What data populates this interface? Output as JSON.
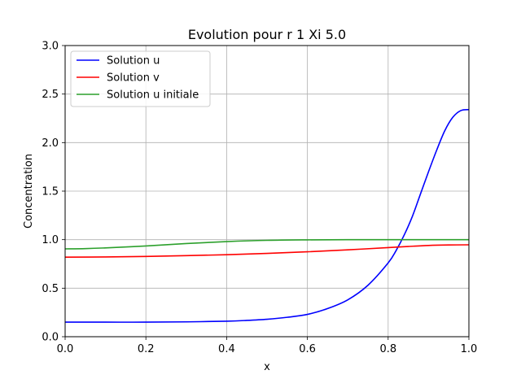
{
  "chart_data": {
    "type": "line",
    "title": "Evolution pour r 1 Xi 5.0",
    "xlabel": "x",
    "ylabel": "Concentration",
    "xlim": [
      0.0,
      1.0
    ],
    "ylim": [
      0.0,
      3.0
    ],
    "x_ticks": [
      "0.0",
      "0.2",
      "0.4",
      "0.6",
      "0.8",
      "1.0"
    ],
    "y_ticks": [
      "0.0",
      "0.5",
      "1.0",
      "1.5",
      "2.0",
      "2.5",
      "3.0"
    ],
    "grid": true,
    "legend_position": "top-left",
    "series": [
      {
        "name": "Solution u",
        "color": "#0000ff",
        "x": [
          0.0,
          0.1,
          0.2,
          0.3,
          0.4,
          0.45,
          0.5,
          0.55,
          0.6,
          0.65,
          0.7,
          0.75,
          0.8,
          0.82,
          0.84,
          0.86,
          0.88,
          0.9,
          0.92,
          0.94,
          0.96,
          0.98,
          1.0
        ],
        "values": [
          0.15,
          0.15,
          0.15,
          0.153,
          0.16,
          0.168,
          0.18,
          0.2,
          0.23,
          0.29,
          0.38,
          0.53,
          0.76,
          0.89,
          1.05,
          1.24,
          1.47,
          1.7,
          1.92,
          2.12,
          2.26,
          2.33,
          2.34
        ]
      },
      {
        "name": "Solution v",
        "color": "#ff0000",
        "x": [
          0.0,
          0.1,
          0.2,
          0.3,
          0.4,
          0.5,
          0.6,
          0.7,
          0.8,
          0.85,
          0.9,
          0.95,
          1.0
        ],
        "values": [
          0.82,
          0.822,
          0.827,
          0.835,
          0.845,
          0.858,
          0.875,
          0.895,
          0.918,
          0.93,
          0.94,
          0.945,
          0.947
        ]
      },
      {
        "name": "Solution u initiale",
        "color": "#2ca02c",
        "x": [
          0.0,
          0.05,
          0.1,
          0.2,
          0.3,
          0.4,
          0.5,
          0.6,
          0.7,
          0.8,
          0.9,
          1.0
        ],
        "values": [
          0.905,
          0.908,
          0.915,
          0.935,
          0.96,
          0.98,
          0.993,
          0.998,
          1.0,
          1.0,
          1.0,
          1.0
        ]
      }
    ]
  }
}
